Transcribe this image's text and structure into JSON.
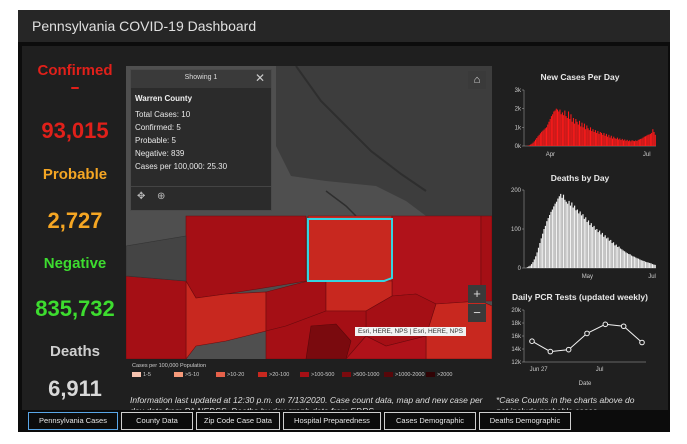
{
  "header": {
    "title": "Pennsylvania COVID-19 Dashboard"
  },
  "stats": [
    {
      "label": "Confirmed",
      "value": "93,015",
      "label_color": "#e0201a",
      "value_color": "#e0201a"
    },
    {
      "label": "Probable",
      "value": "2,727",
      "label_color": "#f5a623",
      "value_color": "#f5a623"
    },
    {
      "label": "Negative",
      "value": "835,732",
      "label_color": "#3ddc2f",
      "value_color": "#3ddc2f"
    },
    {
      "label": "Deaths",
      "value": "6,911",
      "label_color": "#cfcfcf",
      "value_color": "#d8d8d8"
    }
  ],
  "popup": {
    "showing": "Showing 1",
    "county": "Warren County",
    "lines": [
      "Total Cases: 10",
      "Confirmed: 5",
      "Probable: 5",
      "Negative: 839",
      "Cases per 100,000: 25.30"
    ],
    "icons": [
      "move-icon",
      "zoom-to-icon"
    ]
  },
  "map": {
    "attribution": "Esri, HERE, NPS | Esri, HERE, NPS",
    "highlight_color": "#36d3e0",
    "legend_title": "Cases per 100,000 Population",
    "legend": [
      {
        "label": "1-5",
        "color": "#f7c4b0"
      },
      {
        "label": ">5-10",
        "color": "#f59a7a"
      },
      {
        "label": ">10-20",
        "color": "#e6614a"
      },
      {
        "label": ">20-100",
        "color": "#c8281f"
      },
      {
        "label": ">100-500",
        "color": "#a50f15"
      },
      {
        "label": ">500-1000",
        "color": "#7a0a0e"
      },
      {
        "label": ">1000-2000",
        "color": "#57070a"
      },
      {
        "label": ">2000",
        "color": "#300305"
      }
    ]
  },
  "info_text": "Information last updated at 12:30 p.m. on 7/13/2020. Case count data, map and new case per day data from PA NEDSS. Deaths by day graph data from EDRS.",
  "note_text": "*Case Counts in the charts above do not include probable cases",
  "charts": {
    "cases": {
      "title": "New Cases Per Day",
      "y_ticks": [
        "3k",
        "2k",
        "1k",
        "0k"
      ],
      "x_ticks": [
        "Apr",
        "Jul"
      ],
      "color": "#ff1a1a"
    },
    "deaths": {
      "title": "Deaths by Day",
      "y_ticks": [
        "200",
        "100",
        "0"
      ],
      "x_ticks": [
        "May",
        "Jul"
      ],
      "color": "#f2f2f2"
    },
    "pcr": {
      "title": "Daily PCR Tests (updated weekly)",
      "y_ticks": [
        "20k",
        "18k",
        "16k",
        "14k",
        "12k"
      ],
      "x_ticks": [
        "Jun 27",
        "Jul"
      ],
      "x_label": "Date",
      "color": "#f2f2f2"
    }
  },
  "chart_data": [
    {
      "type": "bar",
      "title": "New Cases Per Day",
      "ylim": [
        0,
        3000
      ],
      "x_tick_labels": [
        "Apr",
        "Jul"
      ],
      "values": [
        0,
        0,
        10,
        20,
        40,
        80,
        120,
        180,
        250,
        340,
        430,
        520,
        600,
        680,
        760,
        820,
        880,
        950,
        1000,
        1150,
        1300,
        1450,
        1600,
        1700,
        1850,
        1900,
        2000,
        1950,
        1850,
        1950,
        1700,
        1800,
        1650,
        1900,
        1600,
        1500,
        1850,
        1450,
        1700,
        1300,
        1500,
        1200,
        1450,
        1300,
        1150,
        1350,
        1050,
        1250,
        1000,
        1200,
        900,
        1100,
        950,
        850,
        1000,
        800,
        900,
        750,
        850,
        700,
        800,
        650,
        750,
        700,
        600,
        700,
        550,
        650,
        500,
        600,
        450,
        550,
        400,
        500,
        420,
        380,
        450,
        350,
        400,
        320,
        380,
        300,
        350,
        280,
        330,
        260,
        300,
        250,
        310,
        280,
        260,
        300,
        270,
        330,
        350,
        380,
        400,
        450,
        500,
        520,
        560,
        600,
        620,
        650,
        700,
        900,
        750,
        600
      ],
      "series_color": "#ff1a1a"
    },
    {
      "type": "bar",
      "title": "Deaths by Day",
      "ylim": [
        0,
        200
      ],
      "x_tick_labels": [
        "May",
        "Jul"
      ],
      "values": [
        0,
        0,
        2,
        4,
        6,
        10,
        15,
        22,
        30,
        40,
        52,
        64,
        76,
        88,
        100,
        108,
        120,
        128,
        136,
        144,
        150,
        158,
        165,
        170,
        178,
        184,
        190,
        180,
        188,
        175,
        170,
        165,
        172,
        160,
        168,
        155,
        160,
        148,
        150,
        140,
        145,
        135,
        138,
        126,
        130,
        118,
        122,
        110,
        115,
        105,
        108,
        98,
        100,
        92,
        96,
        86,
        90,
        80,
        84,
        76,
        78,
        70,
        72,
        64,
        66,
        58,
        60,
        54,
        55,
        50,
        48,
        45,
        43,
        40,
        38,
        36,
        35,
        32,
        30,
        29,
        27,
        25,
        24,
        22,
        20,
        19,
        18,
        16,
        15,
        14,
        13,
        12,
        10,
        9,
        8
      ],
      "series_color": "#f2f2f2"
    },
    {
      "type": "line",
      "title": "Daily PCR Tests (updated weekly)",
      "xlabel": "Date",
      "ylim": [
        12000,
        20000
      ],
      "x_tick_labels": [
        "Jun 27",
        "Jul"
      ],
      "values": [
        15200,
        13600,
        13900,
        16400,
        17800,
        17500,
        15000
      ]
    }
  ],
  "tabs": [
    {
      "label": "Pennsylvania Cases",
      "active": true
    },
    {
      "label": "County Data",
      "active": false
    },
    {
      "label": "Zip Code Case Data",
      "active": false
    },
    {
      "label": "Hospital Preparedness",
      "active": false
    },
    {
      "label": "Cases Demographic",
      "active": false
    },
    {
      "label": "Deaths Demographic",
      "active": false
    }
  ]
}
